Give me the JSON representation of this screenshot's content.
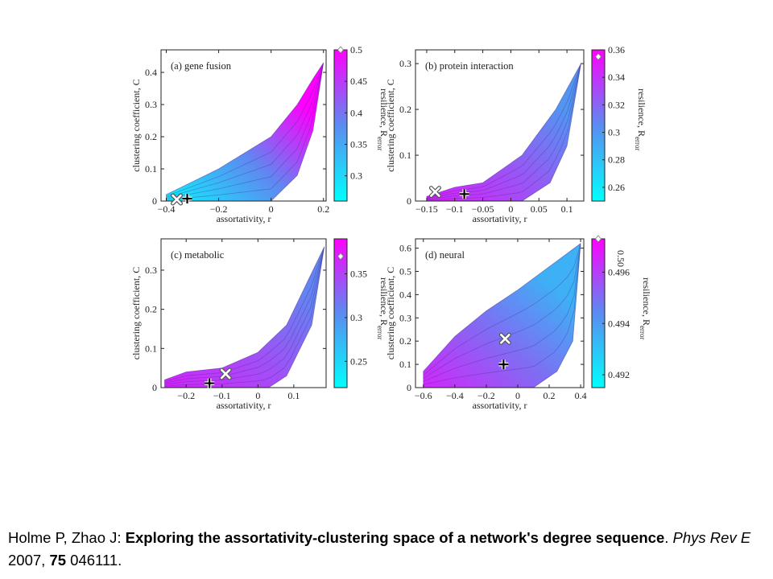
{
  "chart_data": [
    {
      "type": "heatmap",
      "title": "(a)  gene fusion",
      "xlabel": "assortativity, r",
      "ylabel": "clustering coefficient, C",
      "colorbar_label": "resilience, R",
      "colorbar_sub": "error",
      "xlim": [
        -0.42,
        0.21
      ],
      "ylim": [
        0,
        0.47
      ],
      "xticks": [
        -0.4,
        -0.2,
        0,
        0.2
      ],
      "xtick_labels": [
        "−0.4",
        "−0.2",
        "0",
        "0.2"
      ],
      "yticks": [
        0,
        0.1,
        0.2,
        0.3,
        0.4
      ],
      "ytick_labels": [
        "0",
        "0.1",
        "0.2",
        "0.3",
        "0.4"
      ],
      "clim": [
        0.26,
        0.5
      ],
      "cticks": [
        0.3,
        0.35,
        0.4,
        0.45,
        0.5
      ],
      "ctick_labels": [
        "0.3",
        "0.35",
        "0.4",
        "0.45",
        "0.5"
      ],
      "diamond_value": 0.5,
      "region_lower": [
        [
          -0.4,
          0
        ],
        [
          -0.2,
          0
        ],
        [
          0,
          0
        ],
        [
          0.1,
          0.08
        ],
        [
          0.16,
          0.22
        ],
        [
          0.2,
          0.43
        ]
      ],
      "region_upper": [
        [
          -0.4,
          0.02
        ],
        [
          -0.2,
          0.1
        ],
        [
          0,
          0.2
        ],
        [
          0.1,
          0.3
        ],
        [
          0.16,
          0.38
        ],
        [
          0.2,
          0.43
        ]
      ],
      "ridge_value": 0.5,
      "base_value": 0.27,
      "x_marker": {
        "r": -0.36,
        "C": 0
      },
      "plus_marker": {
        "r": -0.32,
        "C": 0
      }
    },
    {
      "type": "heatmap",
      "title": "(b)  protein interaction",
      "xlabel": "assortativity, r",
      "ylabel": "clustering coefficient, C",
      "colorbar_label": "resilience, R",
      "colorbar_sub": "error",
      "xlim": [
        -0.17,
        0.13
      ],
      "ylim": [
        0,
        0.33
      ],
      "xticks": [
        -0.15,
        -0.1,
        -0.05,
        0,
        0.05,
        0.1
      ],
      "xtick_labels": [
        "−0.15",
        "−0.1",
        "−0.05",
        "0",
        "0.05",
        "0.1"
      ],
      "yticks": [
        0,
        0.1,
        0.2,
        0.3
      ],
      "ytick_labels": [
        "0",
        "0.1",
        "0.2",
        "0.3"
      ],
      "clim": [
        0.25,
        0.36
      ],
      "cticks": [
        0.26,
        0.28,
        0.3,
        0.32,
        0.34,
        0.36
      ],
      "ctick_labels": [
        "0.26",
        "0.28",
        "0.3",
        "0.32",
        "0.34",
        "0.36"
      ],
      "diamond_value": 0.355,
      "region_lower": [
        [
          -0.15,
          0
        ],
        [
          -0.05,
          0
        ],
        [
          0.02,
          0
        ],
        [
          0.07,
          0.04
        ],
        [
          0.1,
          0.12
        ],
        [
          0.125,
          0.3
        ]
      ],
      "region_upper": [
        [
          -0.15,
          0.01
        ],
        [
          -0.1,
          0.03
        ],
        [
          -0.05,
          0.04
        ],
        [
          0.02,
          0.1
        ],
        [
          0.08,
          0.2
        ],
        [
          0.125,
          0.3
        ]
      ],
      "ridge_value": 0.3,
      "base_value": 0.35,
      "x_marker": {
        "r": -0.135,
        "C": 0.02
      },
      "plus_marker": {
        "r": -0.083,
        "C": 0.01
      }
    },
    {
      "type": "heatmap",
      "title": "(c)  metabolic",
      "xlabel": "assortativity, r",
      "ylabel": "clustering coefficient, C",
      "colorbar_label": "resilience, R",
      "colorbar_sub": "error",
      "xlim": [
        -0.27,
        0.19
      ],
      "ylim": [
        0,
        0.38
      ],
      "xticks": [
        -0.2,
        -0.1,
        0,
        0.1
      ],
      "xtick_labels": [
        "−0.2",
        "−0.1",
        "0",
        "0.1"
      ],
      "yticks": [
        0,
        0.1,
        0.2,
        0.3
      ],
      "ytick_labels": [
        "0",
        "0.1",
        "0.2",
        "0.3"
      ],
      "clim": [
        0.22,
        0.39
      ],
      "cticks": [
        0.25,
        0.3,
        0.35
      ],
      "ctick_labels": [
        "0.25",
        "0.3",
        "0.35"
      ],
      "diamond_value": 0.37,
      "region_lower": [
        [
          -0.26,
          0
        ],
        [
          -0.1,
          0
        ],
        [
          0.03,
          0
        ],
        [
          0.08,
          0.03
        ],
        [
          0.15,
          0.16
        ],
        [
          0.185,
          0.36
        ]
      ],
      "region_upper": [
        [
          -0.26,
          0.02
        ],
        [
          -0.2,
          0.04
        ],
        [
          -0.1,
          0.05
        ],
        [
          0,
          0.09
        ],
        [
          0.08,
          0.16
        ],
        [
          0.185,
          0.36
        ]
      ],
      "ridge_value": 0.31,
      "base_value": 0.37,
      "x_marker": {
        "r": -0.09,
        "C": 0.035
      },
      "plus_marker": {
        "r": -0.135,
        "C": 0.005
      }
    },
    {
      "type": "heatmap",
      "title": "(d)  neural",
      "xlabel": "assortativity, r",
      "ylabel": "clustering coefficient, C",
      "colorbar_label": "resilience, R",
      "colorbar_sub": "error",
      "xlim": [
        -0.65,
        0.42
      ],
      "ylim": [
        0,
        0.64
      ],
      "xticks": [
        -0.6,
        -0.4,
        -0.2,
        0,
        0.2,
        0.4
      ],
      "xtick_labels": [
        "−0.6",
        "−0.4",
        "−0.2",
        "0",
        "0.2",
        "0.4"
      ],
      "yticks": [
        0,
        0.1,
        0.2,
        0.3,
        0.4,
        0.5,
        0.6
      ],
      "ytick_labels": [
        "0",
        "0.1",
        "0.2",
        "0.3",
        "0.4",
        "0.5",
        "0.6"
      ],
      "clim": [
        0.4915,
        0.4973
      ],
      "cticks": [
        0.492,
        0.494,
        0.496
      ],
      "ctick_labels": [
        "0.492",
        "0.494",
        "0.496"
      ],
      "diamond_label": "0.50",
      "diamond_value": 0.4973,
      "region_lower": [
        [
          -0.6,
          0
        ],
        [
          -0.2,
          0
        ],
        [
          0.1,
          0
        ],
        [
          0.25,
          0.07
        ],
        [
          0.35,
          0.2
        ],
        [
          0.4,
          0.62
        ]
      ],
      "region_upper": [
        [
          -0.6,
          0.07
        ],
        [
          -0.4,
          0.22
        ],
        [
          -0.2,
          0.33
        ],
        [
          0,
          0.42
        ],
        [
          0.2,
          0.52
        ],
        [
          0.4,
          0.62
        ]
      ],
      "ridge_value": 0.4935,
      "base_value": 0.4966,
      "x_marker": {
        "r": -0.08,
        "C": 0.21
      },
      "plus_marker": {
        "r": -0.09,
        "C": 0.1
      }
    }
  ],
  "citation": {
    "authors": "Holme P, Zhao J: ",
    "title": "Exploring the assortativity-clustering space of a network's degree sequence",
    "sep": ". ",
    "journal": "Phys Rev E",
    "year": " 2007, ",
    "volume": "75",
    "pages": " 046111."
  },
  "colors": {
    "cmap_low": "#00ffff",
    "cmap_mid": "#5a8cf0",
    "cmap_high": "#ff00ff",
    "axis": "#222222"
  }
}
